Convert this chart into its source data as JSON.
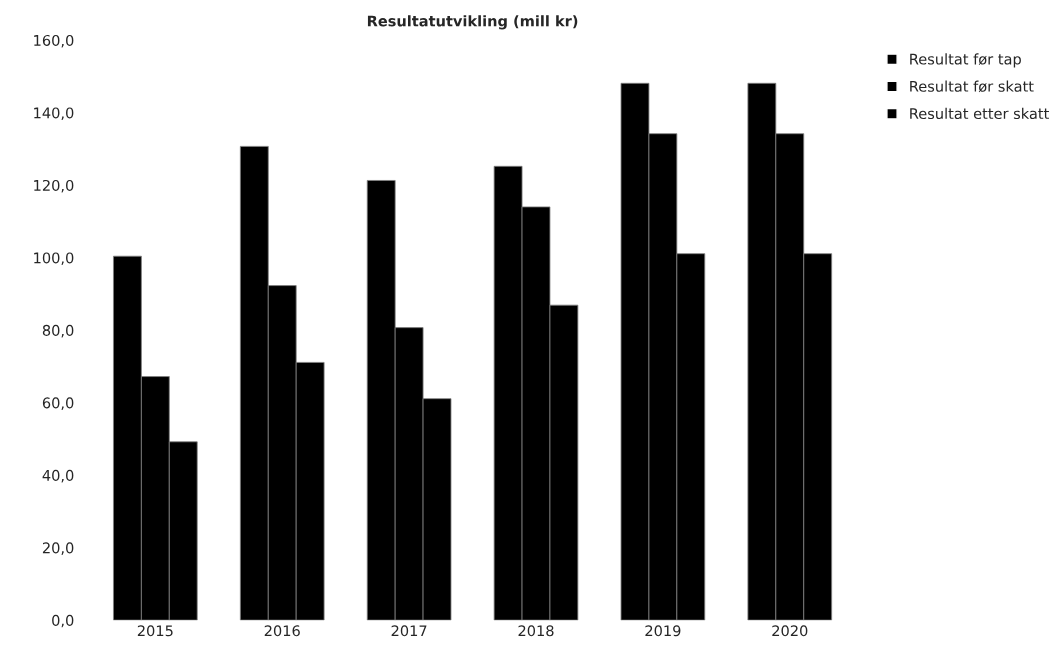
{
  "chart_data": {
    "type": "bar",
    "title": "Resultatutvikling (mill kr)",
    "categories": [
      "2015",
      "2016",
      "2017",
      "2018",
      "2019",
      "2020"
    ],
    "series": [
      {
        "name": "Resultat før tap",
        "color": "#000000",
        "values": [
          100.4,
          130.7,
          121.3,
          125.2,
          148.1,
          148.1
        ]
      },
      {
        "name": "Resultat før skatt",
        "color": "#000000",
        "values": [
          67.2,
          92.3,
          80.7,
          114.0,
          134.2,
          134.2
        ]
      },
      {
        "name": "Resultat etter skatt",
        "color": "#000000",
        "values": [
          49.2,
          71.1,
          61.1,
          86.9,
          101.1,
          101.1
        ]
      }
    ],
    "ylim": [
      0,
      160
    ],
    "yticks": [
      {
        "value": 0,
        "label": "0,0"
      },
      {
        "value": 20,
        "label": "20,0"
      },
      {
        "value": 40,
        "label": "40,0"
      },
      {
        "value": 60,
        "label": "60,0"
      },
      {
        "value": 80,
        "label": "80,0"
      },
      {
        "value": 100,
        "label": "100,0"
      },
      {
        "value": 120,
        "label": "120,0"
      },
      {
        "value": 140,
        "label": "140,0"
      },
      {
        "value": 160,
        "label": "160,0"
      }
    ],
    "grid": false,
    "legend": "top right"
  }
}
